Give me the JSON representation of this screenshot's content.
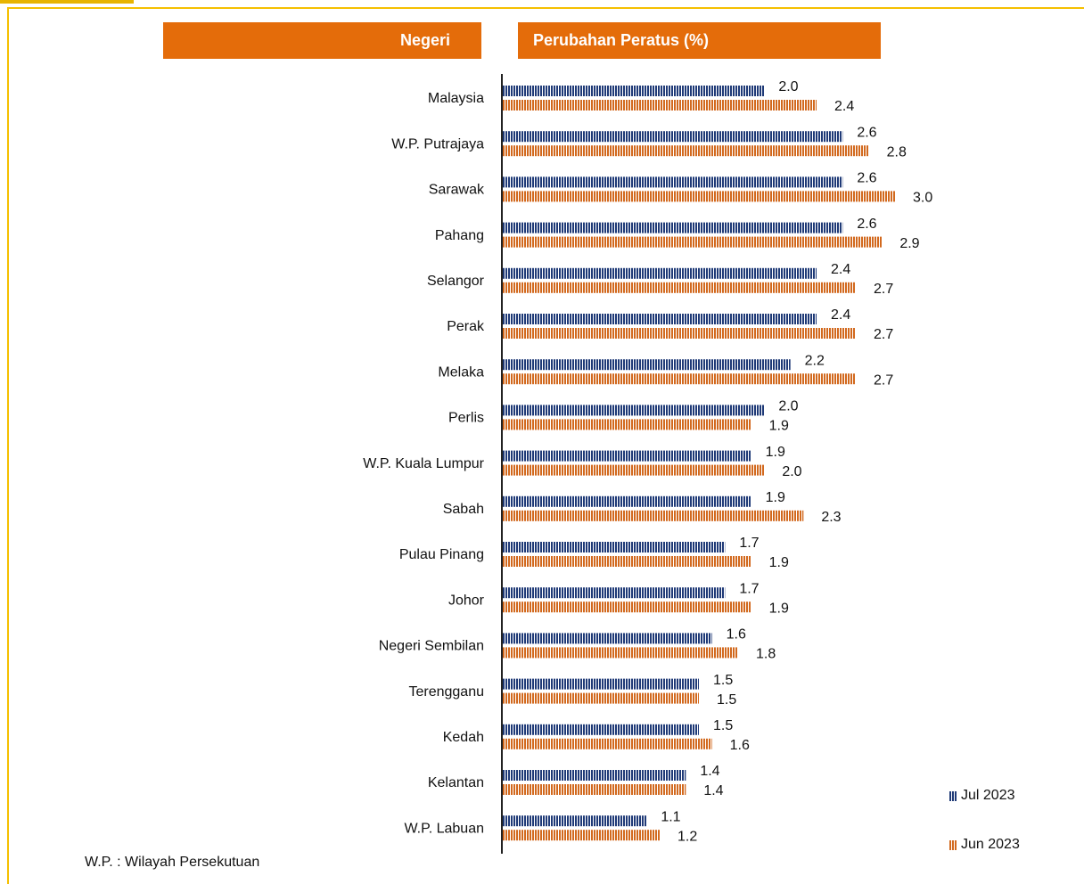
{
  "chart_data": {
    "type": "barh",
    "headers": [
      "Negeri",
      "Perubahan Peratus (%)"
    ],
    "categories": [
      "Malaysia",
      "W.P. Putrajaya",
      "Sarawak",
      "Pahang",
      "Selangor",
      "Perak",
      "Melaka",
      "Perlis",
      "W.P. Kuala Lumpur",
      "Sabah",
      "Pulau Pinang",
      "Johor",
      "Negeri Sembilan",
      "Terengganu",
      "Kedah",
      "Kelantan",
      "W.P. Labuan"
    ],
    "series": [
      {
        "name": "Jul 2023",
        "color": "#1f3a77",
        "values": [
          2.0,
          2.6,
          2.6,
          2.6,
          2.4,
          2.4,
          2.2,
          2.0,
          1.9,
          1.9,
          1.7,
          1.7,
          1.6,
          1.5,
          1.5,
          1.4,
          1.1
        ],
        "value_labels": [
          "2.0",
          "2.6",
          "2.6",
          "2.6",
          "2.4",
          "2.4",
          "2.2",
          "2.0",
          "1.9",
          "1.9",
          "1.7",
          "1.7",
          "1.6",
          "1.5",
          "1.5",
          "1.4",
          "1.1"
        ]
      },
      {
        "name": "Jun 2023",
        "color": "#d2691e",
        "values": [
          2.4,
          2.8,
          3.0,
          2.9,
          2.7,
          2.7,
          2.7,
          1.9,
          2.0,
          2.3,
          1.9,
          1.9,
          1.8,
          1.5,
          1.6,
          1.4,
          1.2
        ],
        "value_labels": [
          "2.4",
          "2.8",
          "3.0",
          "2.9",
          "2.7",
          "2.7",
          "2.7",
          "1.9",
          "2.0",
          "2.3",
          "1.9",
          "1.9",
          "1.8",
          "1.5",
          "1.6",
          "1.4",
          "1.2"
        ]
      }
    ],
    "note": "W.P. : Wilayah Persekutuan"
  }
}
